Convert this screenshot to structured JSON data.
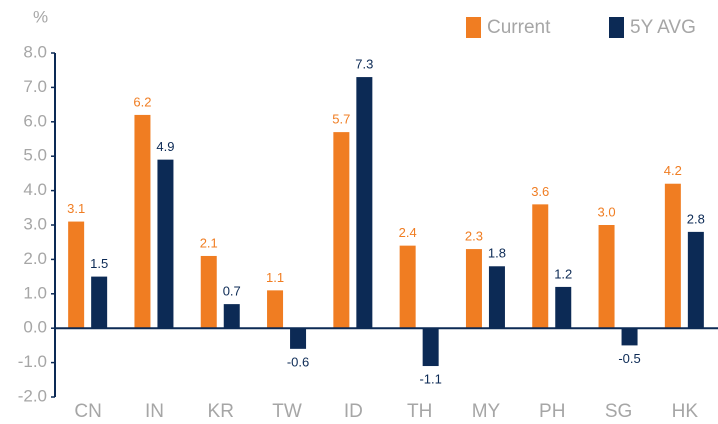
{
  "chart_data": {
    "type": "bar",
    "y_axis_label": "%",
    "categories": [
      "CN",
      "IN",
      "KR",
      "TW",
      "ID",
      "TH",
      "MY",
      "PH",
      "SG",
      "HK"
    ],
    "series": [
      {
        "name": "Current",
        "color": "#f07d22",
        "values": [
          3.1,
          6.2,
          2.1,
          1.1,
          5.7,
          2.4,
          2.3,
          3.6,
          3.0,
          4.2
        ],
        "value_labels": [
          "3.1",
          "6.2",
          "2.1",
          "1.1",
          "5.7",
          "2.4",
          "2.3",
          "3.6",
          "3.0",
          "4.2"
        ]
      },
      {
        "name": "5Y AVG",
        "color": "#0c2a55",
        "values": [
          1.5,
          4.9,
          0.7,
          -0.6,
          7.3,
          -1.1,
          1.8,
          1.2,
          -0.5,
          2.8
        ],
        "value_labels": [
          "1.5",
          "4.9",
          "0.7",
          "-0.6",
          "7.3",
          "-1.1",
          "1.8",
          "1.2",
          "-0.5",
          "2.8"
        ]
      }
    ],
    "ylim": [
      -2,
      8
    ],
    "yticks": [
      {
        "value": -2,
        "label": "-2.0"
      },
      {
        "value": -1,
        "label": "-1.0"
      },
      {
        "value": 0,
        "label": "0.0"
      },
      {
        "value": 1,
        "label": "1.0"
      },
      {
        "value": 2,
        "label": "2.0"
      },
      {
        "value": 3,
        "label": "3.0"
      },
      {
        "value": 4,
        "label": "4.0"
      },
      {
        "value": 5,
        "label": "5.0"
      },
      {
        "value": 6,
        "label": "6.0"
      },
      {
        "value": 7,
        "label": "7.0"
      },
      {
        "value": 8,
        "label": "8.0"
      }
    ],
    "grid": false,
    "legend": "top-right"
  }
}
